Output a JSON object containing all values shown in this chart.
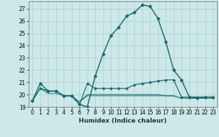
{
  "xlabel": "Humidex (Indice chaleur)",
  "background_color": "#cce8e8",
  "grid_color": "#aacccc",
  "line_color": "#1a6b6b",
  "xlim": [
    -0.5,
    23.5
  ],
  "ylim": [
    19,
    27.6
  ],
  "yticks": [
    19,
    20,
    21,
    22,
    23,
    24,
    25,
    26,
    27
  ],
  "xticks": [
    0,
    1,
    2,
    3,
    4,
    5,
    6,
    7,
    8,
    9,
    10,
    11,
    12,
    13,
    14,
    15,
    16,
    17,
    18,
    19,
    20,
    21,
    22,
    23
  ],
  "xtick_labels": [
    "0",
    "1",
    "2",
    "3",
    "4",
    "5",
    "6",
    "7",
    "8",
    "9",
    "10",
    "11",
    "12",
    "13",
    "14",
    "15",
    "16",
    "17",
    "18",
    "19",
    "20",
    "21",
    "22",
    "23"
  ],
  "series": [
    {
      "x": [
        0,
        1,
        2,
        3,
        4,
        5,
        6,
        7,
        8,
        9,
        10,
        11,
        12,
        13,
        14,
        15,
        16,
        17,
        18,
        19,
        20,
        21,
        22,
        23
      ],
      "y": [
        19.5,
        20.9,
        20.3,
        20.3,
        19.9,
        19.9,
        19.2,
        19.0,
        21.5,
        23.3,
        24.8,
        25.5,
        26.4,
        26.7,
        27.3,
        27.2,
        26.2,
        24.3,
        22.0,
        21.2,
        19.8,
        19.7,
        19.8,
        19.8
      ],
      "marker": "D",
      "marker_size": 2.5,
      "linewidth": 1.1
    },
    {
      "x": [
        0,
        1,
        2,
        3,
        4,
        5,
        6,
        7,
        8,
        9,
        10,
        11,
        12,
        13,
        14,
        15,
        16,
        17,
        18,
        19,
        20,
        21,
        22,
        23
      ],
      "y": [
        19.5,
        20.5,
        20.3,
        20.3,
        19.9,
        19.9,
        19.2,
        20.9,
        20.5,
        20.5,
        20.5,
        20.5,
        20.5,
        20.8,
        20.9,
        21.0,
        21.1,
        21.2,
        21.2,
        19.8,
        19.8,
        19.8,
        19.8,
        19.8
      ],
      "marker": "D",
      "marker_size": 2.0,
      "linewidth": 0.9
    },
    {
      "x": [
        0,
        1,
        2,
        3,
        4,
        5,
        6,
        7,
        8,
        9,
        10,
        11,
        12,
        13,
        14,
        15,
        16,
        17,
        18,
        19,
        20,
        21,
        22,
        23
      ],
      "y": [
        19.5,
        20.5,
        20.3,
        20.3,
        19.9,
        19.9,
        19.4,
        20.0,
        20.0,
        20.0,
        20.0,
        20.0,
        20.0,
        20.0,
        20.0,
        20.0,
        20.0,
        19.9,
        19.9,
        19.7,
        19.7,
        19.7,
        19.7,
        19.7
      ],
      "marker": null,
      "linewidth": 0.75
    },
    {
      "x": [
        0,
        1,
        2,
        3,
        4,
        5,
        6,
        7,
        8,
        9,
        10,
        11,
        12,
        13,
        14,
        15,
        16,
        17,
        18,
        19,
        20,
        21,
        22,
        23
      ],
      "y": [
        19.5,
        20.5,
        20.1,
        20.1,
        19.9,
        19.9,
        19.4,
        19.9,
        19.9,
        19.9,
        19.9,
        19.9,
        19.9,
        19.9,
        19.9,
        19.9,
        19.9,
        19.9,
        19.9,
        19.7,
        19.7,
        19.7,
        19.7,
        19.7
      ],
      "marker": null,
      "linewidth": 0.65
    }
  ]
}
